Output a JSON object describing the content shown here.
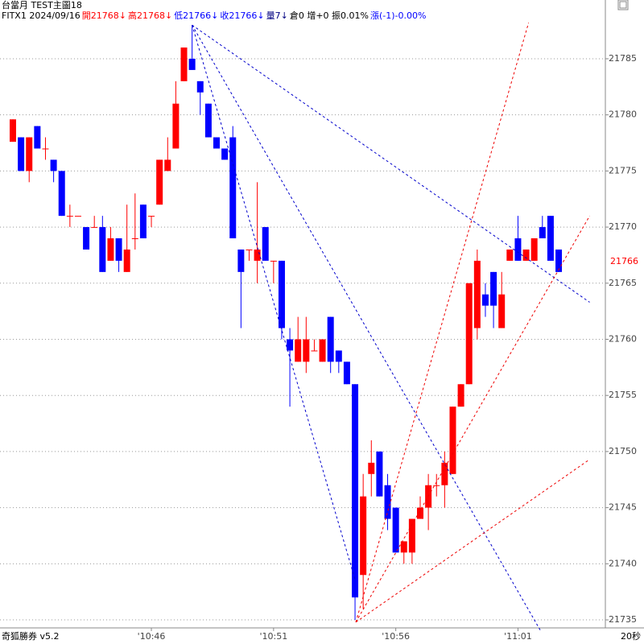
{
  "header": {
    "title": "台當月 TEST主圖18",
    "info": [
      {
        "text": "FITX1 2024/09/16",
        "color": "#000000"
      },
      {
        "text": "開21768↓",
        "color": "#ff0000"
      },
      {
        "text": "高21768↓",
        "color": "#ff0000"
      },
      {
        "text": "低21766↓",
        "color": "#0000ff"
      },
      {
        "text": "收21766↓",
        "color": "#0000ff"
      },
      {
        "text": "量7↓",
        "color": "#000080"
      },
      {
        "text": "倉0 增+0 振0.01%",
        "color": "#000000"
      },
      {
        "text": "漲(-1)-0.00%",
        "color": "#0000ff"
      }
    ]
  },
  "footer": {
    "brand": "奇狐勝券 v5.2",
    "interval": "20秒"
  },
  "chart_data": {
    "type": "candlestick",
    "categories": [
      null,
      null,
      null,
      null,
      null,
      null,
      null,
      null,
      null,
      null,
      null,
      null,
      null,
      null,
      null,
      null,
      null,
      "'10:46",
      null,
      null,
      null,
      null,
      null,
      null,
      null,
      null,
      null,
      null,
      null,
      null,
      null,
      null,
      "'10:51",
      null,
      null,
      null,
      null,
      null,
      null,
      null,
      null,
      null,
      null,
      null,
      null,
      null,
      null,
      "'10:56",
      null,
      null,
      null,
      null,
      null,
      null,
      null,
      null,
      null,
      null,
      null,
      null,
      null,
      null,
      "'11:01",
      null,
      null,
      null,
      null,
      null
    ],
    "open": [
      21777.6,
      21778,
      21775,
      21779,
      21777,
      21776,
      21775,
      21771,
      21771,
      21770,
      21770,
      21770,
      21767,
      21769,
      21766,
      21769,
      21772,
      21771,
      21772,
      21775,
      21777,
      21783,
      21785,
      21783,
      21781,
      21778,
      21777,
      21778,
      21768,
      21768,
      21767,
      21770,
      21767,
      21767,
      21760,
      21758,
      21758,
      21759,
      21758,
      21762,
      21759,
      21758,
      21756,
      21739,
      21748,
      21750,
      21747,
      21745,
      21741,
      21741,
      21744,
      21745,
      21747,
      21747,
      21748,
      21754,
      21756,
      21761,
      21764,
      21766,
      21761,
      21767,
      21769,
      21767,
      21767,
      21770,
      21771,
      21768
    ],
    "high": [
      21779.6,
      21778,
      21778,
      21779,
      21778,
      21776,
      21775,
      21772,
      21771,
      21770,
      21771,
      21771,
      21770,
      21769,
      21772,
      21773,
      21772,
      21771,
      21776,
      21778,
      21783,
      21786,
      21788,
      21783,
      21781,
      21778,
      21777,
      21779,
      21768,
      21768,
      21774,
      21770,
      21767,
      21767,
      21761,
      21762,
      21762,
      21760,
      21760,
      21762,
      21759,
      21758,
      21756,
      21748,
      21751,
      21750,
      21748,
      21745,
      21742,
      21744,
      21746,
      21748,
      21748,
      21750,
      21754,
      21756,
      21765,
      21768,
      21765,
      21766,
      21766,
      21768,
      21771,
      21768,
      21769,
      21771,
      21771,
      21768
    ],
    "low": [
      21777.6,
      21775,
      21774,
      21777,
      21776,
      21774,
      21771,
      21770,
      21771,
      21768,
      21770,
      21766,
      21767,
      21766,
      21766,
      21768,
      21769,
      21770,
      21772,
      21775,
      21777,
      21783,
      21784,
      21780,
      21778,
      21777,
      21776,
      21769,
      21761,
      21767,
      21765,
      21767,
      21765,
      21760,
      21754,
      21758,
      21757,
      21759,
      21758,
      21757,
      21757,
      21756,
      21735,
      21736,
      21746,
      21746,
      21743,
      21741,
      21740,
      21740,
      21744,
      21743,
      21746,
      21745,
      21748,
      21754,
      21756,
      21760,
      21762,
      21761,
      21761,
      21767,
      21767,
      21767,
      21767,
      21769,
      21767,
      21766
    ],
    "close": [
      21779.6,
      21775,
      21778,
      21777,
      21777,
      21775,
      21771,
      21771,
      21771,
      21768,
      21770,
      21766,
      21769,
      21767,
      21768,
      21769,
      21769,
      21771,
      21776,
      21776,
      21781,
      21786,
      21784,
      21782,
      21778,
      21777,
      21776,
      21769,
      21766,
      21768,
      21768,
      21767,
      21767,
      21761,
      21759,
      21760,
      21760,
      21759,
      21760,
      21758,
      21758,
      21756,
      21737,
      21746,
      21749,
      21746,
      21744,
      21741,
      21742,
      21744,
      21745,
      21747,
      21747,
      21749,
      21754,
      21756,
      21765,
      21767,
      21763,
      21763,
      21764,
      21768,
      21767,
      21768,
      21769,
      21769,
      21767,
      21766
    ],
    "up_color": "#ff0000",
    "down_color": "#0000ff",
    "ylim": [
      21734.5,
      21788.8
    ],
    "yticks": [
      21735,
      21740,
      21745,
      21750,
      21755,
      21760,
      21765,
      21770,
      21775,
      21780,
      21785
    ],
    "grid": true,
    "last_price": 21766,
    "overlays": [
      {
        "color": "#0000cc",
        "from": [
          22,
          21788
        ],
        "to": [
          70.8,
          21763.3
        ]
      },
      {
        "color": "#0000cc",
        "from": [
          22,
          21788
        ],
        "to": [
          64.8,
          21734
        ]
      },
      {
        "color": "#0000cc",
        "from": [
          22,
          21788
        ],
        "to": [
          42,
          21738.6
        ]
      },
      {
        "color": "#ee0000",
        "from": [
          42.1,
          21734.8
        ],
        "to": [
          63.3,
          21788.2
        ]
      },
      {
        "color": "#ee0000",
        "from": [
          42.1,
          21734.8
        ],
        "to": [
          70.8,
          21771
        ]
      },
      {
        "color": "#ee0000",
        "from": [
          42.1,
          21734.8
        ],
        "to": [
          70.8,
          21749.3
        ]
      }
    ]
  }
}
